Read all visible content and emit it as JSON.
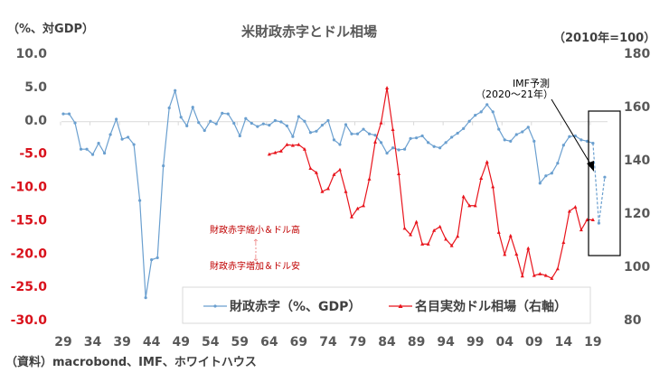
{
  "chart_data": {
    "type": "line",
    "title": "米財政赤字とドル相場",
    "ylabel_left": "（%、対GDP）",
    "ylabel_right": "（2010年=100）",
    "ylim_left": [
      -30,
      10
    ],
    "yticks_left": [
      "10.0",
      "5.0",
      "0.0",
      "-5.0",
      "-10.0",
      "-15.0",
      "-20.0",
      "-25.0",
      "-30.0"
    ],
    "ylim_right": [
      80,
      180
    ],
    "yticks_right": [
      "180",
      "160",
      "140",
      "120",
      "100",
      "80"
    ],
    "xlim": [
      1929,
      2021
    ],
    "xticks": [
      "29",
      "34",
      "39",
      "44",
      "49",
      "54",
      "59",
      "64",
      "69",
      "74",
      "79",
      "84",
      "89",
      "94",
      "99",
      "04",
      "09",
      "14",
      "19"
    ],
    "legend_position": "bottom-center",
    "series": [
      {
        "name": "財政赤字（%、GDP）",
        "axis": "left",
        "color": "#6a9fcf",
        "x_start": 1929,
        "values": [
          0.9,
          0.9,
          -0.45,
          -4.4,
          -4.4,
          -5.2,
          -3.5,
          -5.0,
          -2.2,
          0.1,
          -2.9,
          -2.6,
          -3.7,
          -12.1,
          -26.7,
          -21.0,
          -20.7,
          -6.9,
          1.8,
          4.4,
          0.4,
          -0.9,
          1.9,
          -0.4,
          -1.6,
          -0.2,
          -0.6,
          1.0,
          0.9,
          -0.5,
          -2.4,
          0.2,
          -0.5,
          -1.0,
          -0.6,
          -0.8,
          -0.1,
          -0.3,
          -0.9,
          -2.5,
          0.5,
          -0.2,
          -1.9,
          -1.7,
          -0.8,
          -0.1,
          -3.0,
          -3.7,
          -0.7,
          -2.1,
          -2.1,
          -1.4,
          -2.1,
          -2.3,
          -3.4,
          -5.0,
          -4.2,
          -4.5,
          -4.4,
          -2.8,
          -2.7,
          -2.4,
          -3.4,
          -4.0,
          -4.2,
          -3.4,
          -2.6,
          -2.0,
          -1.3,
          -0.2,
          0.7,
          1.2,
          2.3,
          1.2,
          -1.4,
          -3.0,
          -3.2,
          -2.2,
          -1.8,
          -1.1,
          -3.2,
          -9.5,
          -8.4,
          -8.0,
          -6.5,
          -3.8,
          -2.5,
          -2.4,
          -3.0,
          -3.2,
          -3.5,
          -15.5,
          -8.6
        ],
        "forecast_from": 2020
      },
      {
        "name": "名目実効ドル相場（右軸）",
        "axis": "right",
        "color": "#e8141c",
        "x_start": 1964,
        "values": [
          142.1,
          142.7,
          143.3,
          145.7,
          145.4,
          145.7,
          144.0,
          136.8,
          135.2,
          128.1,
          129.2,
          134.5,
          136.3,
          128.1,
          118.6,
          121.7,
          122.8,
          132.8,
          146.7,
          153.9,
          167.0,
          151.4,
          134.8,
          114.3,
          111.9,
          116.7,
          108.4,
          108.4,
          113.5,
          114.9,
          110.2,
          107.8,
          111.3,
          126.2,
          122.8,
          122.8,
          133.1,
          139.2,
          129.9,
          112.8,
          104.5,
          111.5,
          104.6,
          96.4,
          106.8,
          96.6,
          97.2,
          96.6,
          95.5,
          99.1,
          109.0,
          120.7,
          122.3,
          113.7,
          117.5,
          117.5
        ]
      }
    ],
    "annotations": {
      "upper": "財政赤字縮小＆ドル高",
      "lower": "財政赤字増加＆ドル安",
      "arrow_up": "↑",
      "arrow_down": "↓",
      "imf_line1": "IMF予測",
      "imf_line2": "（2020～21年）"
    }
  },
  "source": "（資料）macrobond、IMF、ホワイトハウス"
}
